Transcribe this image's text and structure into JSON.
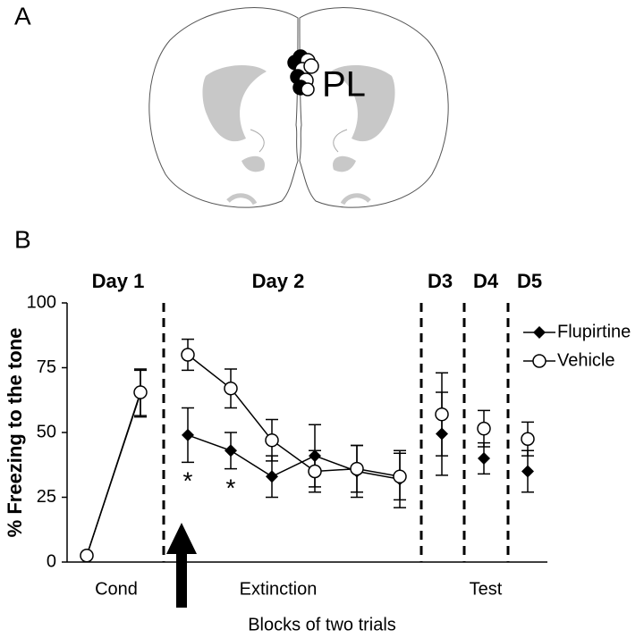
{
  "panel_a": {
    "panel_label": "A",
    "region_label": "PL"
  },
  "chart_data": {
    "type": "line",
    "panel_label": "B",
    "y_label": "% Freezing to the tone",
    "x_label": "Blocks of two trials",
    "day_labels": [
      "Day 1",
      "Day 2",
      "D3",
      "D4",
      "D5"
    ],
    "phase_labels": [
      "Cond",
      "Extinction",
      "Test"
    ],
    "annotations": [
      "*",
      "*"
    ],
    "categories": [
      null,
      null,
      null,
      null,
      null,
      null,
      null,
      null,
      null,
      null,
      null
    ],
    "series": [
      {
        "name": "Flupirtine",
        "color": "#000000",
        "marker": "diamond",
        "values": [
          2.5,
          65,
          49,
          43,
          33,
          41,
          35,
          32,
          49.5,
          40,
          35
        ],
        "errors": [
          0,
          9,
          10.5,
          7,
          8,
          12,
          10,
          11,
          16,
          6,
          8
        ]
      },
      {
        "name": "Vehicle",
        "color": "#000000",
        "marker": "circle",
        "values": [
          2.5,
          65.5,
          80,
          67,
          47,
          35,
          36,
          33,
          57,
          51.5,
          47.5
        ],
        "errors": [
          0,
          9,
          6,
          7.5,
          8,
          8,
          9,
          9,
          16,
          7,
          6.5
        ]
      }
    ],
    "ylim": [
      0,
      100
    ],
    "yticks": [
      0,
      25,
      50,
      75,
      100
    ],
    "grid": false,
    "legend": "upper right"
  }
}
